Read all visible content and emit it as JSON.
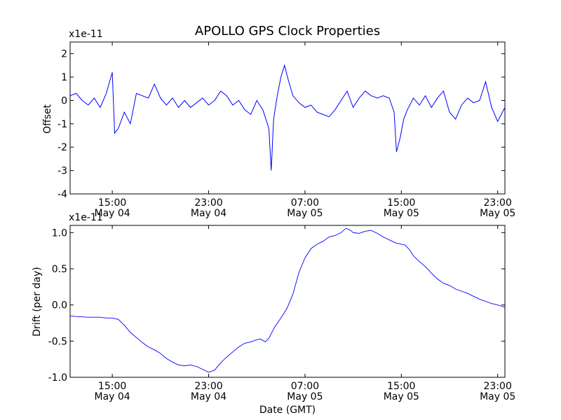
{
  "chart_data": {
    "title": "APOLLO GPS Clock Properties",
    "xlabel": "Date (GMT)",
    "x_ticks": [
      {
        "hour": 15,
        "time": "15:00",
        "date": "May 04"
      },
      {
        "hour": 23,
        "time": "23:00",
        "date": "May 04"
      },
      {
        "hour": 31,
        "time": "07:00",
        "date": "May 05"
      },
      {
        "hour": 39,
        "time": "15:00",
        "date": "May 05"
      },
      {
        "hour": 47,
        "time": "23:00",
        "date": "May 05"
      }
    ],
    "xlim_hours": [
      11.5,
      47.6
    ],
    "panels": [
      {
        "id": "offset",
        "type": "line",
        "ylabel": "Offset",
        "multiplier": "x1e-11",
        "ylim": [
          -4,
          2.5
        ],
        "yticks": [
          {
            "v": -4,
            "label": "-4"
          },
          {
            "v": -3,
            "label": "-3"
          },
          {
            "v": -2,
            "label": "-2"
          },
          {
            "v": -1,
            "label": "-1"
          },
          {
            "v": 0,
            "label": "0"
          },
          {
            "v": 1,
            "label": "1"
          },
          {
            "v": 2,
            "label": "2"
          }
        ],
        "color": "#0000ff",
        "series": [
          [
            11.5,
            0.2
          ],
          [
            12.0,
            0.3
          ],
          [
            12.5,
            0.0
          ],
          [
            13.0,
            -0.2
          ],
          [
            13.5,
            0.1
          ],
          [
            14.0,
            -0.3
          ],
          [
            14.5,
            0.3
          ],
          [
            15.0,
            1.2
          ],
          [
            15.2,
            -1.4
          ],
          [
            15.5,
            -1.2
          ],
          [
            16.0,
            -0.5
          ],
          [
            16.5,
            -1.0
          ],
          [
            17.0,
            0.3
          ],
          [
            17.5,
            0.2
          ],
          [
            18.0,
            0.1
          ],
          [
            18.5,
            0.7
          ],
          [
            19.0,
            0.1
          ],
          [
            19.5,
            -0.2
          ],
          [
            20.0,
            0.1
          ],
          [
            20.5,
            -0.3
          ],
          [
            21.0,
            0.0
          ],
          [
            21.5,
            -0.3
          ],
          [
            22.0,
            -0.1
          ],
          [
            22.5,
            0.1
          ],
          [
            23.0,
            -0.2
          ],
          [
            23.5,
            0.0
          ],
          [
            24.0,
            0.4
          ],
          [
            24.5,
            0.2
          ],
          [
            25.0,
            -0.2
          ],
          [
            25.5,
            0.0
          ],
          [
            26.0,
            -0.4
          ],
          [
            26.5,
            -0.6
          ],
          [
            27.0,
            0.0
          ],
          [
            27.5,
            -0.4
          ],
          [
            28.0,
            -1.2
          ],
          [
            28.2,
            -3.0
          ],
          [
            28.4,
            -0.8
          ],
          [
            28.7,
            0.2
          ],
          [
            29.0,
            1.0
          ],
          [
            29.3,
            1.5
          ],
          [
            29.6,
            0.9
          ],
          [
            30.0,
            0.2
          ],
          [
            30.5,
            -0.1
          ],
          [
            31.0,
            -0.3
          ],
          [
            31.5,
            -0.2
          ],
          [
            32.0,
            -0.5
          ],
          [
            32.5,
            -0.6
          ],
          [
            33.0,
            -0.7
          ],
          [
            33.5,
            -0.4
          ],
          [
            34.0,
            0.0
          ],
          [
            34.5,
            0.4
          ],
          [
            35.0,
            -0.3
          ],
          [
            35.5,
            0.1
          ],
          [
            36.0,
            0.4
          ],
          [
            36.5,
            0.2
          ],
          [
            37.0,
            0.1
          ],
          [
            37.5,
            0.2
          ],
          [
            38.0,
            0.1
          ],
          [
            38.4,
            -0.5
          ],
          [
            38.6,
            -2.2
          ],
          [
            38.9,
            -1.6
          ],
          [
            39.2,
            -0.8
          ],
          [
            39.5,
            -0.4
          ],
          [
            40.0,
            0.1
          ],
          [
            40.5,
            -0.2
          ],
          [
            41.0,
            0.2
          ],
          [
            41.5,
            -0.3
          ],
          [
            42.0,
            0.1
          ],
          [
            42.5,
            0.4
          ],
          [
            43.0,
            -0.5
          ],
          [
            43.5,
            -0.8
          ],
          [
            44.0,
            -0.2
          ],
          [
            44.5,
            0.1
          ],
          [
            45.0,
            -0.1
          ],
          [
            45.5,
            0.0
          ],
          [
            46.0,
            0.8
          ],
          [
            46.5,
            -0.3
          ],
          [
            47.0,
            -0.9
          ],
          [
            47.6,
            -0.3
          ]
        ]
      },
      {
        "id": "drift",
        "type": "line",
        "ylabel": "Drift (per day)",
        "multiplier": "x1e-11",
        "ylim": [
          -1.0,
          1.1
        ],
        "yticks": [
          {
            "v": -1.0,
            "label": "-1.0"
          },
          {
            "v": -0.5,
            "label": "-0.5"
          },
          {
            "v": 0.0,
            "label": "0.0"
          },
          {
            "v": 0.5,
            "label": "0.5"
          },
          {
            "v": 1.0,
            "label": "1.0"
          }
        ],
        "color": "#0000ff",
        "series": [
          [
            11.5,
            -0.15
          ],
          [
            12.0,
            -0.16
          ],
          [
            13.0,
            -0.17
          ],
          [
            14.0,
            -0.17
          ],
          [
            14.5,
            -0.18
          ],
          [
            15.0,
            -0.18
          ],
          [
            15.5,
            -0.2
          ],
          [
            16.0,
            -0.28
          ],
          [
            16.5,
            -0.38
          ],
          [
            17.0,
            -0.45
          ],
          [
            17.5,
            -0.52
          ],
          [
            18.0,
            -0.58
          ],
          [
            18.5,
            -0.62
          ],
          [
            19.0,
            -0.67
          ],
          [
            19.5,
            -0.74
          ],
          [
            20.0,
            -0.79
          ],
          [
            20.5,
            -0.83
          ],
          [
            21.0,
            -0.84
          ],
          [
            21.5,
            -0.83
          ],
          [
            22.0,
            -0.85
          ],
          [
            22.5,
            -0.89
          ],
          [
            23.0,
            -0.93
          ],
          [
            23.5,
            -0.9
          ],
          [
            24.0,
            -0.8
          ],
          [
            24.5,
            -0.72
          ],
          [
            25.0,
            -0.65
          ],
          [
            25.5,
            -0.58
          ],
          [
            26.0,
            -0.53
          ],
          [
            26.5,
            -0.51
          ],
          [
            27.0,
            -0.48
          ],
          [
            27.3,
            -0.47
          ],
          [
            27.7,
            -0.51
          ],
          [
            28.0,
            -0.46
          ],
          [
            28.5,
            -0.3
          ],
          [
            29.0,
            -0.18
          ],
          [
            29.5,
            -0.05
          ],
          [
            30.0,
            0.15
          ],
          [
            30.5,
            0.45
          ],
          [
            31.0,
            0.65
          ],
          [
            31.5,
            0.78
          ],
          [
            32.0,
            0.84
          ],
          [
            32.5,
            0.88
          ],
          [
            33.0,
            0.94
          ],
          [
            33.5,
            0.96
          ],
          [
            34.0,
            1.0
          ],
          [
            34.4,
            1.06
          ],
          [
            34.8,
            1.03
          ],
          [
            35.0,
            1.0
          ],
          [
            35.5,
            0.99
          ],
          [
            36.0,
            1.02
          ],
          [
            36.5,
            1.03
          ],
          [
            37.0,
            0.99
          ],
          [
            37.5,
            0.94
          ],
          [
            38.0,
            0.9
          ],
          [
            38.5,
            0.86
          ],
          [
            39.0,
            0.84
          ],
          [
            39.3,
            0.83
          ],
          [
            39.7,
            0.76
          ],
          [
            40.0,
            0.68
          ],
          [
            40.5,
            0.6
          ],
          [
            41.0,
            0.53
          ],
          [
            41.5,
            0.44
          ],
          [
            42.0,
            0.36
          ],
          [
            42.5,
            0.3
          ],
          [
            43.0,
            0.27
          ],
          [
            43.5,
            0.22
          ],
          [
            44.0,
            0.19
          ],
          [
            44.5,
            0.16
          ],
          [
            45.0,
            0.12
          ],
          [
            45.5,
            0.08
          ],
          [
            46.0,
            0.05
          ],
          [
            46.5,
            0.02
          ],
          [
            47.0,
            0.0
          ],
          [
            47.6,
            -0.03
          ]
        ]
      }
    ]
  }
}
